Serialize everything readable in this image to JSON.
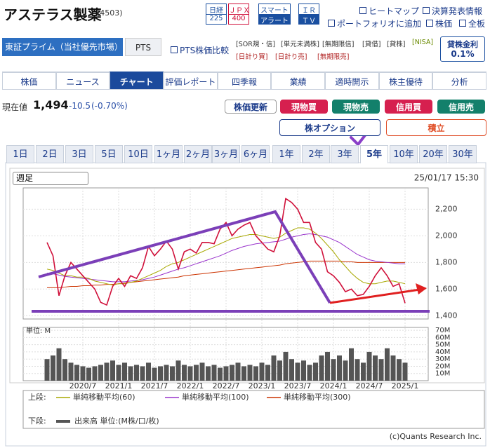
{
  "header": {
    "title": "アステラス製薬",
    "code": "(4503)",
    "badges": [
      [
        "日経",
        "225"
      ],
      [
        "ＪＰＸ",
        "400"
      ],
      [
        "スマート",
        "アラート"
      ],
      [
        "ＩＲ",
        "ＴＶ"
      ]
    ],
    "links": [
      "ヒートマップ",
      "決算発表情報",
      "ポートフォリオに追加",
      "株価",
      "全板"
    ]
  },
  "market": {
    "exchange": "東証プライム（当社優先市場）",
    "pts": "PTS",
    "pts_compare": "PTS株価比較",
    "tags": [
      "[SOR規・信]",
      "[単元未満株]",
      "[無期限信]",
      "[貸借]",
      "[貸株]",
      "[NISA]",
      "[日計り買]",
      "[日計り売]",
      "[無期限売]"
    ],
    "lending_rate_label": "貸株金利",
    "lending_rate": "0.1%"
  },
  "tabs": [
    "株価",
    "ニュース",
    "チャート",
    "評価レポート",
    "四季報",
    "業績",
    "適時開示",
    "株主優待",
    "分析"
  ],
  "active_tab": 2,
  "quote": {
    "label": "現在値",
    "price": "1,494",
    "change": "-10.5",
    "change_pct": "(-0.70%)"
  },
  "buttons": [
    "株価更新",
    "現物買",
    "現物売",
    "信用買",
    "信用売",
    "株オプション",
    "積立"
  ],
  "periods": [
    "1日",
    "2日",
    "3日",
    "5日",
    "10日",
    "1ヶ月",
    "2ヶ月",
    "3ヶ月",
    "6ヶ月",
    "1年",
    "2年",
    "3年",
    "5年",
    "10年",
    "20年",
    "30年"
  ],
  "active_period": 12,
  "chart_data": [
    {
      "type": "line",
      "select": "週足",
      "timestamp": "25/01/17 15:30",
      "legend_prefix": "上段:",
      "categories": [
        null,
        null,
        null,
        null,
        null,
        null,
        "2020/7",
        null,
        null,
        null,
        null,
        null,
        "2021/1",
        null,
        null,
        null,
        null,
        null,
        "2021/7",
        null,
        null,
        null,
        null,
        null,
        "2022/1",
        null,
        null,
        null,
        null,
        null,
        "2022/7",
        null,
        null,
        null,
        null,
        null,
        "2023/1",
        null,
        null,
        null,
        null,
        null,
        "2023/7",
        null,
        null,
        null,
        null,
        null,
        "2024/1",
        null,
        null,
        null,
        null,
        null,
        "2024/7",
        null,
        null,
        null,
        null,
        null,
        "2025/1"
      ],
      "series": [
        {
          "color": "#d0103a",
          "values": [
            1950,
            1850,
            1550,
            1700,
            1800,
            1750,
            1700,
            1650,
            1600,
            1500,
            1480,
            1620,
            1680,
            1620,
            1700,
            1680,
            1760,
            1920,
            1850,
            1900,
            1960,
            1900,
            1750,
            1880,
            1900,
            1870,
            1950,
            1950,
            1940,
            2050,
            2100,
            2000,
            2050,
            2080,
            2100,
            2000,
            1950,
            1900,
            1880,
            2000,
            2280,
            2250,
            2200,
            2100,
            2100,
            1950,
            1900,
            1730,
            1700,
            1650,
            1580,
            1600,
            1550,
            1560,
            1620,
            1700,
            1760,
            1700,
            1620,
            1640,
            1494
          ]
        },
        {
          "name": "単純移動平均(60)",
          "color": "#a8a800",
          "values": [
            1750,
            1740,
            1720,
            1700,
            1700,
            1690,
            1690,
            1680,
            1660,
            1650,
            1640,
            1630,
            1640,
            1640,
            1650,
            1660,
            1680,
            1700,
            1720,
            1740,
            1770,
            1790,
            1800,
            1820,
            1840,
            1860,
            1880,
            1900,
            1920,
            1940,
            1960,
            1980,
            1990,
            2000,
            2010,
            2010,
            2000,
            1990,
            1980,
            1990,
            2020,
            2040,
            2060,
            2060,
            2050,
            2020,
            1980,
            1930,
            1880,
            1820,
            1770,
            1720,
            1680,
            1650,
            1640,
            1640,
            1650,
            1660,
            1660,
            1650,
            1640
          ]
        },
        {
          "name": "単純移動平均(100)",
          "color": "#9933cc",
          "values": [
            1720,
            1715,
            1705,
            1695,
            1690,
            1685,
            1680,
            1675,
            1670,
            1665,
            1660,
            1655,
            1655,
            1655,
            1660,
            1665,
            1670,
            1680,
            1690,
            1705,
            1720,
            1735,
            1750,
            1760,
            1775,
            1790,
            1805,
            1820,
            1835,
            1850,
            1870,
            1890,
            1905,
            1920,
            1930,
            1940,
            1945,
            1950,
            1955,
            1960,
            1975,
            1990,
            2000,
            2010,
            2015,
            2010,
            2000,
            1990,
            1970,
            1950,
            1920,
            1890,
            1860,
            1840,
            1820,
            1810,
            1805,
            1800,
            1795,
            1790,
            1790
          ]
        },
        {
          "name": "単純移動平均(300)",
          "color": "#cc3300",
          "values": [
            1610,
            1610,
            1610,
            1615,
            1620,
            1620,
            1625,
            1625,
            1630,
            1630,
            1635,
            1635,
            1640,
            1645,
            1650,
            1655,
            1660,
            1665,
            1670,
            1675,
            1680,
            1685,
            1690,
            1700,
            1705,
            1710,
            1715,
            1720,
            1725,
            1730,
            1735,
            1740,
            1745,
            1750,
            1755,
            1760,
            1765,
            1770,
            1775,
            1780,
            1790,
            1795,
            1800,
            1805,
            1810,
            1810,
            1810,
            1810,
            1810,
            1810,
            1805,
            1805,
            1800,
            1800,
            1800,
            1800,
            1800,
            1800,
            1800,
            1800,
            1800
          ]
        }
      ],
      "ylim": [
        1375,
        2360
      ],
      "yticks": [
        {
          "value": 1400,
          "label": "1,400"
        },
        {
          "value": 1600,
          "label": "1,600"
        },
        {
          "value": 1800,
          "label": "1,800"
        },
        {
          "value": 2000,
          "label": "2,000"
        },
        {
          "value": 2200,
          "label": "2,200"
        }
      ],
      "grid": true
    },
    {
      "type": "bar",
      "unit_label": "単位: M",
      "legend_prefix": "下段:",
      "series": [
        {
          "name": "出来高 単位:(M株/口/枚)",
          "color": "#555555",
          "values": [
            30,
            35,
            45,
            30,
            25,
            22,
            20,
            18,
            20,
            22,
            25,
            28,
            22,
            25,
            20,
            22,
            20,
            25,
            18,
            20,
            22,
            20,
            28,
            22,
            20,
            22,
            25,
            20,
            22,
            18,
            20,
            22,
            25,
            20,
            22,
            20,
            25,
            22,
            35,
            28,
            40,
            30,
            25,
            28,
            22,
            25,
            35,
            40,
            30,
            35,
            28,
            45,
            30,
            25,
            40,
            35,
            30,
            45,
            35,
            30,
            25
          ]
        }
      ],
      "ylim": [
        0,
        74
      ],
      "yticks": [
        {
          "value": 10,
          "label": "10M"
        },
        {
          "value": 20,
          "label": "20M"
        },
        {
          "value": 30,
          "label": "30M"
        },
        {
          "value": 40,
          "label": "40M"
        },
        {
          "value": 50,
          "label": "50M"
        },
        {
          "value": 60,
          "label": "60M"
        },
        {
          "value": 70,
          "label": "70M"
        }
      ],
      "grid": true
    }
  ],
  "copyright": "(c)Quants Research Inc."
}
